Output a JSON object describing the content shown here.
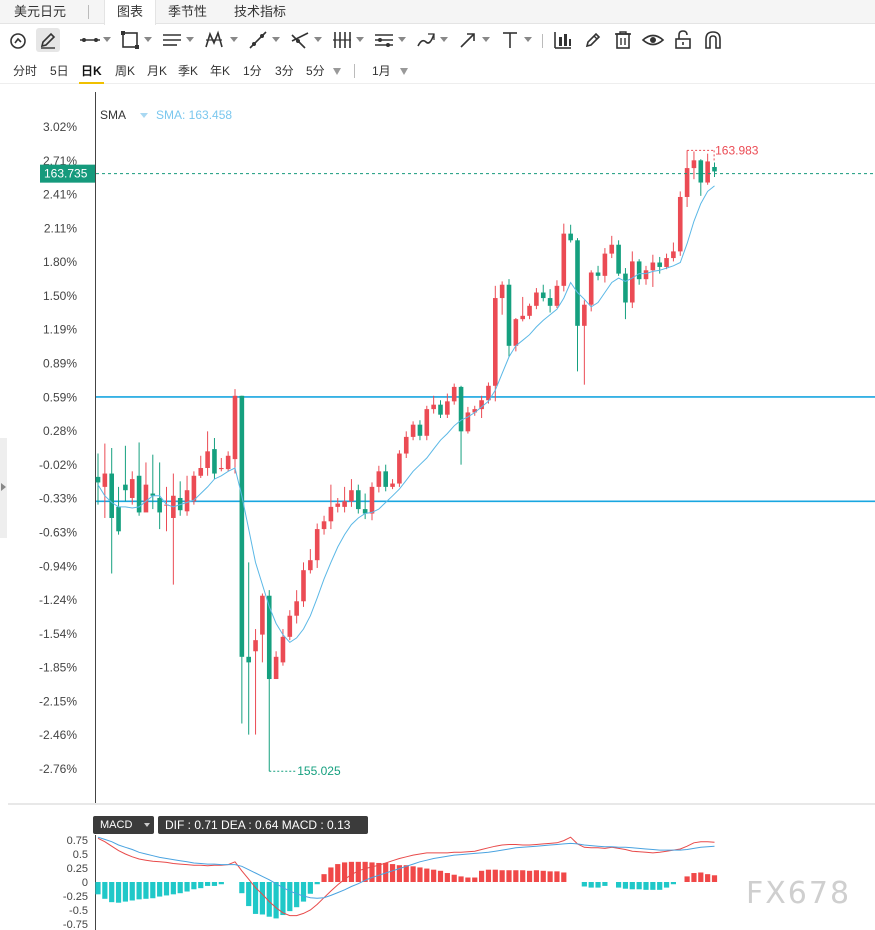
{
  "top_tabs": {
    "symbol": "美元日元",
    "tabs": [
      {
        "label": "图表",
        "active": true
      },
      {
        "label": "季节性",
        "active": false
      },
      {
        "label": "技术指标",
        "active": false
      }
    ]
  },
  "toolbar": {
    "tools": [
      {
        "icon": "magnet-circle-icon"
      },
      {
        "icon": "pencil-icon",
        "active": true
      },
      {
        "icon": "horizontal-line-icon"
      },
      {
        "icon": "rectangle-icon"
      },
      {
        "icon": "parallel-lines-icon"
      },
      {
        "icon": "zigzag-pattern-icon"
      },
      {
        "icon": "trend-line-icon"
      },
      {
        "icon": "fibonacci-icon"
      },
      {
        "icon": "bars-tool-icon"
      },
      {
        "icon": "range-tool-icon"
      },
      {
        "icon": "brush-icon"
      },
      {
        "icon": "arrow-icon"
      },
      {
        "icon": "text-tool-icon"
      },
      {
        "icon": "measure-icon"
      },
      {
        "icon": "edit-icon"
      },
      {
        "icon": "trash-icon"
      },
      {
        "icon": "eye-icon"
      },
      {
        "icon": "lock-icon"
      },
      {
        "icon": "magnet-icon"
      }
    ]
  },
  "periods": {
    "items": [
      {
        "label": "分时"
      },
      {
        "label": "5日"
      },
      {
        "label": "日K",
        "active": true
      },
      {
        "label": "周K"
      },
      {
        "label": "月K"
      },
      {
        "label": "季K"
      },
      {
        "label": "年K"
      },
      {
        "label": "1分"
      },
      {
        "label": "3分"
      },
      {
        "label": "5分"
      }
    ],
    "range_label": "1月"
  },
  "indicator": {
    "name": "SMA",
    "value_text": "SMA: 163.458"
  },
  "price_labels": {
    "current": "163.735",
    "high": "163.983",
    "low": "155.025"
  },
  "macd_legend": {
    "name": "MACD",
    "values_text": "DIF : 0.71   DEA : 0.64   MACD : 0.13"
  },
  "watermark": "FX678",
  "colors": {
    "up": "#eb4b54",
    "down": "#15a07f",
    "sma": "#5bb8e6",
    "h_line": "#19a6e0",
    "current_tag": "#159a7c",
    "macd_pos": "#f04848",
    "macd_neg": "#1fc8c8",
    "dif": "#e84a4a",
    "dea": "#4aa3e0"
  },
  "chart_data": {
    "type": "candlestick",
    "y_axis_ticks": [
      "3.02%",
      "2.71%",
      "2.41%",
      "2.11%",
      "1.80%",
      "1.50%",
      "1.19%",
      "0.89%",
      "0.59%",
      "0.28%",
      "-0.02%",
      "-0.33%",
      "-0.63%",
      "-0.94%",
      "-1.24%",
      "-1.54%",
      "-1.85%",
      "-2.15%",
      "-2.46%",
      "-2.76%"
    ],
    "ylim_pct": [
      -2.85,
      3.3
    ],
    "horizontal_lines_pct": [
      0.59,
      -0.35
    ],
    "current_price_pct": 2.6,
    "candles_pct": [
      [
        -0.13,
        -0.18,
        0.08,
        -0.38
      ],
      [
        -0.22,
        -0.1,
        0.17,
        -0.5
      ],
      [
        -0.1,
        -0.5,
        0.13,
        -1.0
      ],
      [
        -0.4,
        -0.62,
        -0.22,
        -0.65
      ],
      [
        -0.2,
        -0.25,
        0.15,
        -0.35
      ],
      [
        -0.32,
        -0.15,
        -0.08,
        -0.38
      ],
      [
        -0.12,
        -0.45,
        0.18,
        -0.48
      ],
      [
        -0.45,
        -0.2,
        0.0,
        -0.4
      ],
      [
        -0.28,
        -0.3,
        0.07,
        -0.42
      ],
      [
        -0.32,
        -0.45,
        0.0,
        -0.6
      ],
      [
        -0.38,
        -0.38,
        -0.22,
        -0.62
      ],
      [
        -0.5,
        -0.3,
        -0.1,
        -1.1
      ],
      [
        -0.32,
        -0.43,
        -0.17,
        -0.48
      ],
      [
        -0.44,
        -0.25,
        -0.12,
        -0.48
      ],
      [
        -0.35,
        -0.12,
        -0.08,
        -0.38
      ],
      [
        -0.12,
        -0.05,
        0.06,
        -0.14
      ],
      [
        -0.05,
        0.1,
        0.28,
        -0.12
      ],
      [
        0.12,
        -0.1,
        0.22,
        -0.15
      ],
      [
        -0.06,
        -0.05,
        0.04,
        -0.08
      ],
      [
        -0.06,
        0.06,
        0.1,
        -0.08
      ],
      [
        0.03,
        0.6,
        0.66,
        -0.1
      ],
      [
        0.6,
        -1.75,
        0.6,
        -2.35
      ],
      [
        -1.75,
        -1.8,
        -0.9,
        -2.45
      ],
      [
        -1.7,
        -1.6,
        -1.5,
        -2.45
      ],
      [
        -1.55,
        -1.2,
        -1.18,
        -1.8
      ],
      [
        -1.2,
        -1.95,
        -1.15,
        -2.78
      ],
      [
        -1.95,
        -1.75,
        -1.7,
        -1.95
      ],
      [
        -1.8,
        -1.57,
        -1.5,
        -1.83
      ],
      [
        -1.57,
        -1.38,
        -1.33,
        -1.6
      ],
      [
        -1.38,
        -1.25,
        -1.15,
        -1.45
      ],
      [
        -1.25,
        -0.97,
        -0.9,
        -1.3
      ],
      [
        -0.97,
        -0.88,
        -0.78,
        -1.0
      ],
      [
        -0.88,
        -0.6,
        -0.55,
        -0.95
      ],
      [
        -0.6,
        -0.53,
        -0.48,
        -0.65
      ],
      [
        -0.53,
        -0.4,
        -0.2,
        -0.6
      ],
      [
        -0.4,
        -0.37,
        -0.32,
        -0.45
      ],
      [
        -0.4,
        -0.35,
        -0.22,
        -0.45
      ],
      [
        -0.35,
        -0.25,
        -0.15,
        -0.4
      ],
      [
        -0.25,
        -0.42,
        -0.2,
        -0.46
      ],
      [
        -0.42,
        -0.46,
        -0.28,
        -0.51
      ],
      [
        -0.46,
        -0.22,
        -0.18,
        -0.52
      ],
      [
        -0.22,
        -0.08,
        -0.03,
        -0.27
      ],
      [
        -0.08,
        -0.22,
        -0.02,
        -0.26
      ],
      [
        -0.22,
        -0.19,
        -0.15,
        -0.24
      ],
      [
        -0.19,
        0.08,
        0.11,
        -0.22
      ],
      [
        0.08,
        0.23,
        0.28,
        0.04
      ],
      [
        0.23,
        0.34,
        0.37,
        0.2
      ],
      [
        0.34,
        0.24,
        0.38,
        0.2
      ],
      [
        0.24,
        0.48,
        0.51,
        0.2
      ],
      [
        0.48,
        0.52,
        0.6,
        0.44
      ],
      [
        0.52,
        0.43,
        0.56,
        0.4
      ],
      [
        0.43,
        0.55,
        0.62,
        0.4
      ],
      [
        0.55,
        0.68,
        0.71,
        0.52
      ],
      [
        0.68,
        0.28,
        0.69,
        -0.02
      ],
      [
        0.28,
        0.45,
        0.5,
        0.26
      ],
      [
        0.45,
        0.48,
        0.51,
        0.42
      ],
      [
        0.48,
        0.56,
        0.6,
        0.4
      ],
      [
        0.56,
        0.69,
        0.72,
        0.53
      ],
      [
        0.69,
        1.48,
        1.59,
        0.55
      ],
      [
        1.48,
        1.6,
        1.63,
        1.33
      ],
      [
        1.6,
        1.05,
        1.65,
        0.95
      ],
      [
        1.05,
        1.29,
        1.3,
        1.0
      ],
      [
        1.29,
        1.32,
        1.49,
        1.27
      ],
      [
        1.32,
        1.41,
        1.43,
        1.29
      ],
      [
        1.41,
        1.53,
        1.57,
        1.38
      ],
      [
        1.53,
        1.48,
        1.6,
        1.45
      ],
      [
        1.48,
        1.41,
        1.56,
        1.35
      ],
      [
        1.41,
        1.59,
        1.64,
        1.39
      ],
      [
        1.59,
        2.06,
        2.15,
        1.54
      ],
      [
        2.06,
        2.0,
        2.14,
        1.98
      ],
      [
        2.0,
        1.23,
        2.02,
        0.82
      ],
      [
        1.23,
        1.42,
        1.46,
        0.7
      ],
      [
        1.42,
        1.71,
        1.73,
        1.36
      ],
      [
        1.71,
        1.68,
        1.77,
        1.64
      ],
      [
        1.68,
        1.88,
        1.93,
        1.62
      ],
      [
        1.88,
        1.96,
        2.04,
        1.84
      ],
      [
        1.96,
        1.7,
        2.0,
        1.68
      ],
      [
        1.7,
        1.44,
        1.75,
        1.29
      ],
      [
        1.44,
        1.81,
        1.9,
        1.39
      ],
      [
        1.81,
        1.65,
        1.83,
        1.6
      ],
      [
        1.65,
        1.73,
        1.77,
        1.6
      ],
      [
        1.73,
        1.8,
        1.87,
        1.58
      ],
      [
        1.8,
        1.76,
        1.85,
        1.7
      ],
      [
        1.76,
        1.84,
        1.88,
        1.74
      ],
      [
        1.84,
        1.9,
        1.98,
        1.81
      ],
      [
        1.9,
        2.39,
        2.44,
        1.86
      ],
      [
        2.39,
        2.65,
        2.81,
        2.3
      ],
      [
        2.65,
        2.72,
        2.8,
        2.55
      ],
      [
        2.72,
        2.52,
        2.73,
        2.4
      ],
      [
        2.52,
        2.71,
        2.78,
        2.5
      ],
      [
        2.66,
        2.62,
        2.7,
        2.57
      ]
    ],
    "sma_pct": [
      -0.2,
      -0.3,
      -0.36,
      -0.4,
      -0.4,
      -0.41,
      -0.4,
      -0.35,
      -0.3,
      -0.3,
      -0.38,
      -0.4,
      -0.38,
      -0.36,
      -0.34,
      -0.28,
      -0.22,
      -0.15,
      -0.12,
      -0.08,
      -0.05,
      -0.3,
      -0.6,
      -0.9,
      -1.1,
      -1.3,
      -1.45,
      -1.55,
      -1.62,
      -1.58,
      -1.5,
      -1.38,
      -1.22,
      -1.05,
      -0.9,
      -0.76,
      -0.65,
      -0.56,
      -0.5,
      -0.46,
      -0.45,
      -0.42,
      -0.36,
      -0.3,
      -0.24,
      -0.16,
      -0.08,
      -0.02,
      0.04,
      0.12,
      0.2,
      0.26,
      0.33,
      0.38,
      0.41,
      0.45,
      0.5,
      0.55,
      0.65,
      0.8,
      0.95,
      1.05,
      1.1,
      1.15,
      1.22,
      1.28,
      1.33,
      1.38,
      1.48,
      1.62,
      1.53,
      1.47,
      1.4,
      1.44,
      1.53,
      1.62,
      1.66,
      1.63,
      1.66,
      1.7,
      1.7,
      1.72,
      1.73,
      1.75,
      1.77,
      1.8,
      1.97,
      2.17,
      2.33,
      2.44,
      2.49
    ],
    "macd": {
      "ylim": [
        -0.82,
        0.88
      ],
      "y_ticks": [
        "0.75",
        "0.5",
        "0.25",
        "0",
        "-0.25",
        "-0.5",
        "-0.75"
      ],
      "y_values": [
        0.75,
        0.5,
        0.25,
        0,
        -0.25,
        -0.5,
        -0.75
      ],
      "hist": [
        -0.22,
        -0.3,
        -0.36,
        -0.37,
        -0.35,
        -0.33,
        -0.31,
        -0.3,
        -0.29,
        -0.26,
        -0.24,
        -0.22,
        -0.2,
        -0.17,
        -0.13,
        -0.11,
        -0.07,
        -0.07,
        -0.04,
        0.0,
        0.0,
        -0.2,
        -0.43,
        -0.57,
        -0.58,
        -0.62,
        -0.65,
        -0.59,
        -0.52,
        -0.45,
        -0.35,
        -0.21,
        -0.04,
        0.14,
        0.26,
        0.32,
        0.35,
        0.36,
        0.36,
        0.36,
        0.35,
        0.34,
        0.34,
        0.32,
        0.3,
        0.3,
        0.28,
        0.26,
        0.24,
        0.22,
        0.2,
        0.16,
        0.13,
        0.1,
        0.08,
        0.08,
        0.2,
        0.22,
        0.22,
        0.21,
        0.21,
        0.21,
        0.21,
        0.2,
        0.21,
        0.2,
        0.19,
        0.19,
        0.17,
        0.0,
        0.0,
        -0.08,
        -0.1,
        -0.1,
        -0.07,
        0.0,
        -0.1,
        -0.12,
        -0.13,
        -0.13,
        -0.14,
        -0.14,
        -0.14,
        -0.1,
        -0.04,
        0.0,
        0.1,
        0.16,
        0.17,
        0.14,
        0.12
      ],
      "dif": [
        0.78,
        0.72,
        0.64,
        0.56,
        0.5,
        0.45,
        0.41,
        0.39,
        0.37,
        0.36,
        0.35,
        0.33,
        0.32,
        0.31,
        0.3,
        0.3,
        0.29,
        0.3,
        0.3,
        0.31,
        0.36,
        0.2,
        0.05,
        -0.1,
        -0.22,
        -0.35,
        -0.46,
        -0.55,
        -0.6,
        -0.6,
        -0.56,
        -0.5,
        -0.4,
        -0.28,
        -0.16,
        -0.05,
        0.05,
        0.13,
        0.2,
        0.24,
        0.27,
        0.3,
        0.34,
        0.38,
        0.42,
        0.45,
        0.48,
        0.5,
        0.52,
        0.52,
        0.52,
        0.52,
        0.53,
        0.53,
        0.54,
        0.55,
        0.58,
        0.61,
        0.64,
        0.66,
        0.67,
        0.67,
        0.66,
        0.66,
        0.67,
        0.68,
        0.69,
        0.7,
        0.74,
        0.8,
        0.68,
        0.62,
        0.61,
        0.61,
        0.6,
        0.62,
        0.6,
        0.58,
        0.55,
        0.54,
        0.53,
        0.52,
        0.53,
        0.55,
        0.57,
        0.59,
        0.64,
        0.7,
        0.72,
        0.72,
        0.71
      ],
      "dea": [
        0.8,
        0.76,
        0.72,
        0.66,
        0.62,
        0.58,
        0.53,
        0.5,
        0.47,
        0.44,
        0.42,
        0.4,
        0.38,
        0.36,
        0.34,
        0.33,
        0.32,
        0.32,
        0.31,
        0.31,
        0.31,
        0.28,
        0.22,
        0.16,
        0.1,
        0.04,
        -0.03,
        -0.1,
        -0.16,
        -0.21,
        -0.25,
        -0.28,
        -0.29,
        -0.28,
        -0.24,
        -0.19,
        -0.14,
        -0.08,
        -0.03,
        0.03,
        0.08,
        0.12,
        0.16,
        0.2,
        0.24,
        0.28,
        0.32,
        0.36,
        0.39,
        0.42,
        0.44,
        0.46,
        0.48,
        0.49,
        0.5,
        0.51,
        0.52,
        0.53,
        0.55,
        0.57,
        0.59,
        0.61,
        0.62,
        0.63,
        0.64,
        0.65,
        0.66,
        0.67,
        0.68,
        0.69,
        0.68,
        0.66,
        0.65,
        0.64,
        0.63,
        0.63,
        0.62,
        0.62,
        0.61,
        0.6,
        0.59,
        0.58,
        0.57,
        0.57,
        0.57,
        0.57,
        0.58,
        0.6,
        0.62,
        0.63,
        0.64
      ]
    }
  }
}
